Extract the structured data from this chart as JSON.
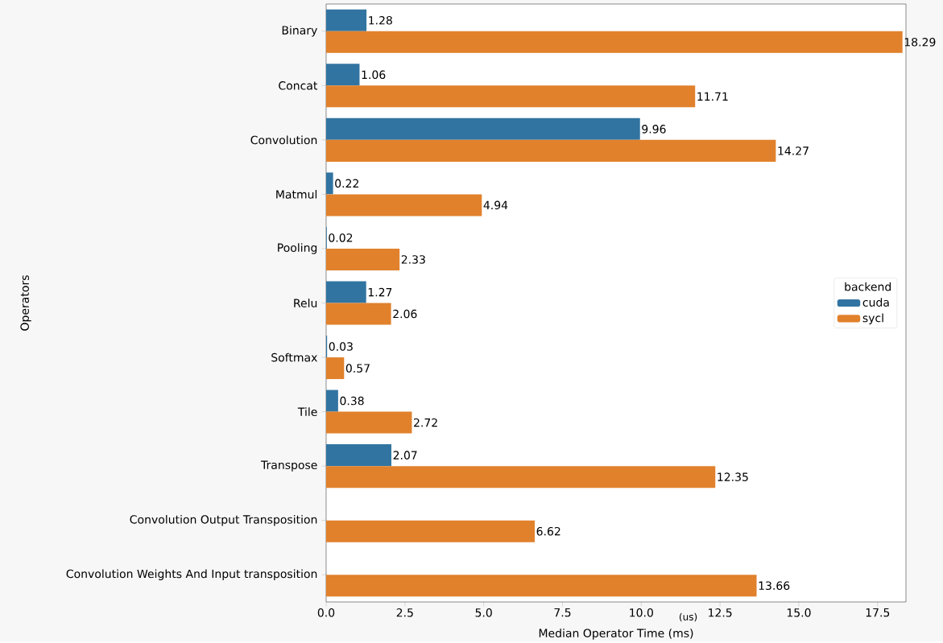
{
  "chart_data": {
    "type": "bar",
    "orientation": "horizontal",
    "xlabel": "Median Operator Time (ms)",
    "ylabel": "Operators",
    "legend_title": "backend",
    "categories": [
      "Binary",
      "Concat",
      "Convolution",
      "Matmul",
      "Pooling",
      "Relu",
      "Softmax",
      "Tile",
      "Transpose",
      "Convolution Output Transposition",
      "Convolution Weights And Input transposition"
    ],
    "series": [
      {
        "name": "cuda",
        "color": "#3274a1",
        "values": [
          1.28,
          1.06,
          9.96,
          0.22,
          0.02,
          1.27,
          0.03,
          0.38,
          2.07,
          null,
          null
        ]
      },
      {
        "name": "sycl",
        "color": "#e1812c",
        "values": [
          18.29,
          11.71,
          14.27,
          4.94,
          2.33,
          2.06,
          0.57,
          2.72,
          12.35,
          6.62,
          13.66
        ]
      }
    ],
    "xlim": [
      0,
      18.4
    ],
    "xticks": [
      {
        "value": 0,
        "label": "0.0"
      },
      {
        "value": 2.5,
        "label": "2.5"
      },
      {
        "value": 5,
        "label": "5.0"
      },
      {
        "value": 7.5,
        "label": "7.5"
      },
      {
        "value": 10,
        "label": "10.0"
      },
      {
        "value": 12.5,
        "label": "12.5"
      },
      {
        "value": 15,
        "label": "15.0"
      },
      {
        "value": 17.5,
        "label": "17.5"
      }
    ],
    "data_labels": true,
    "legend": "right",
    "grid": false,
    "annotations": [
      "(us)"
    ]
  }
}
